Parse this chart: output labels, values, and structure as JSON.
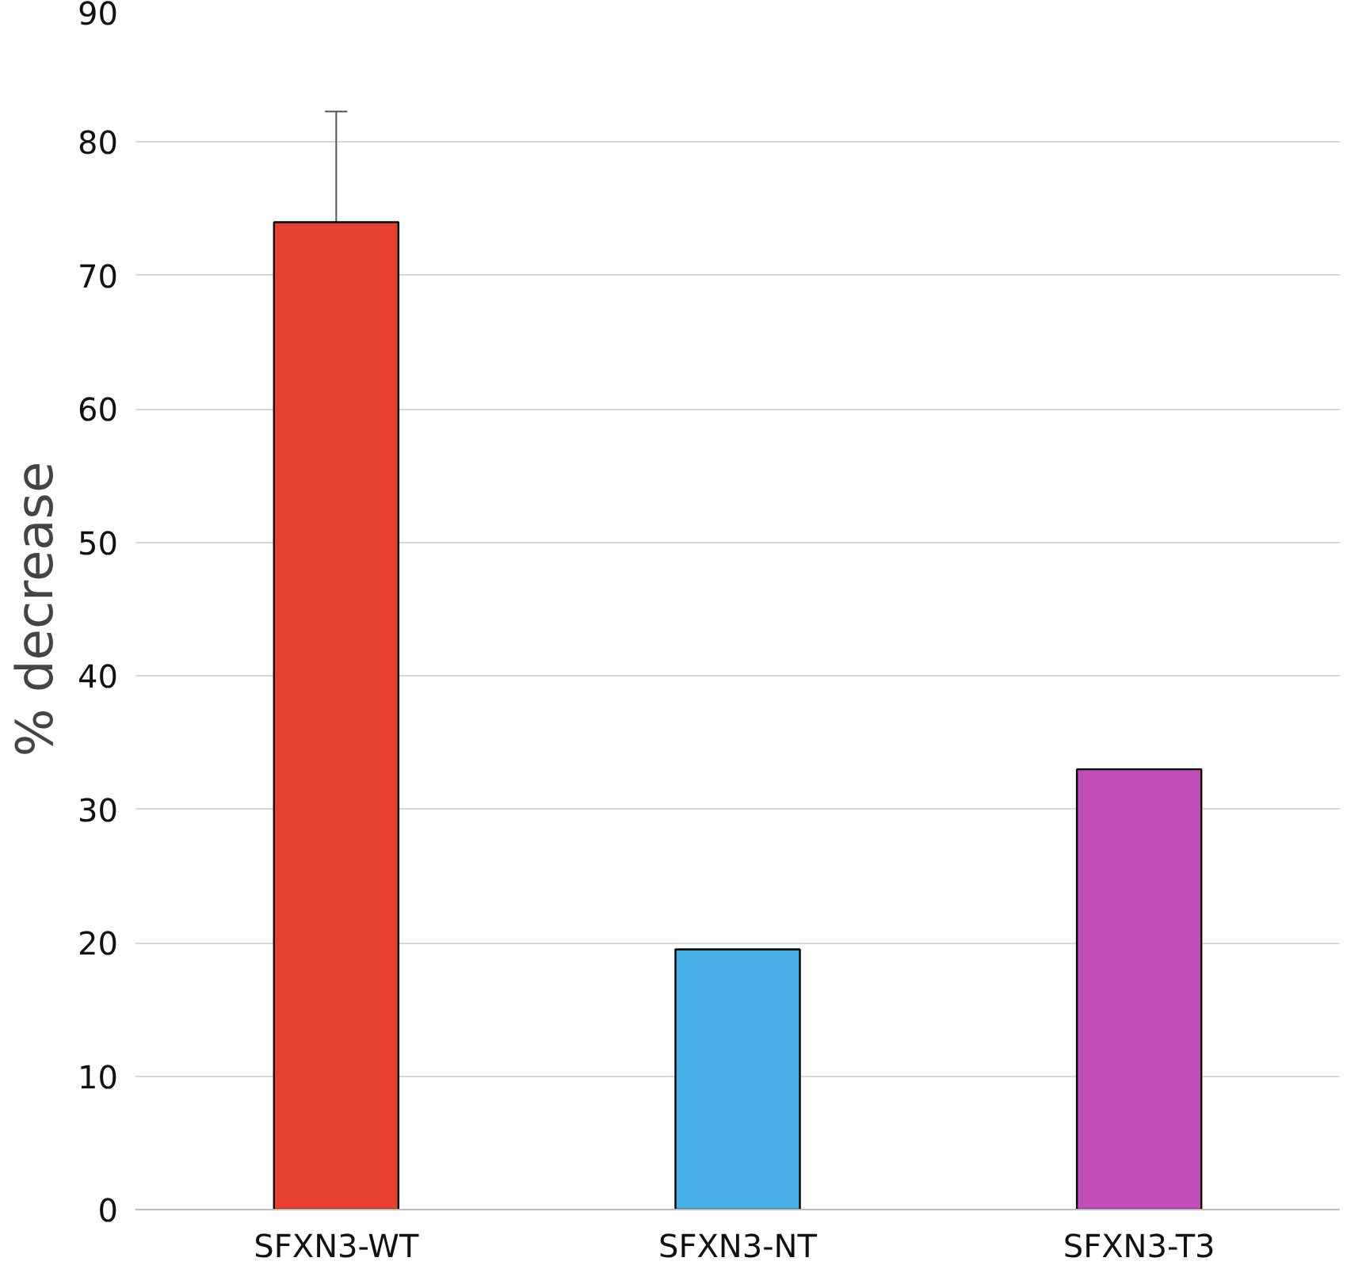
{
  "chart_data": {
    "type": "bar",
    "ylabel": "% decrease",
    "categories": [
      "SFXN3-WT",
      "SFXN3-NT",
      "SFXN3-T3"
    ],
    "values": [
      74.0,
      19.5,
      33.0
    ],
    "colors": [
      "#e8402f",
      "#47aee8",
      "#c04cb8"
    ],
    "errors": [
      8.3,
      null,
      null
    ],
    "ylim": [
      0,
      90
    ],
    "yticks": [
      0,
      10,
      20,
      30,
      40,
      50,
      60,
      70,
      80,
      90
    ],
    "grid": "y"
  }
}
